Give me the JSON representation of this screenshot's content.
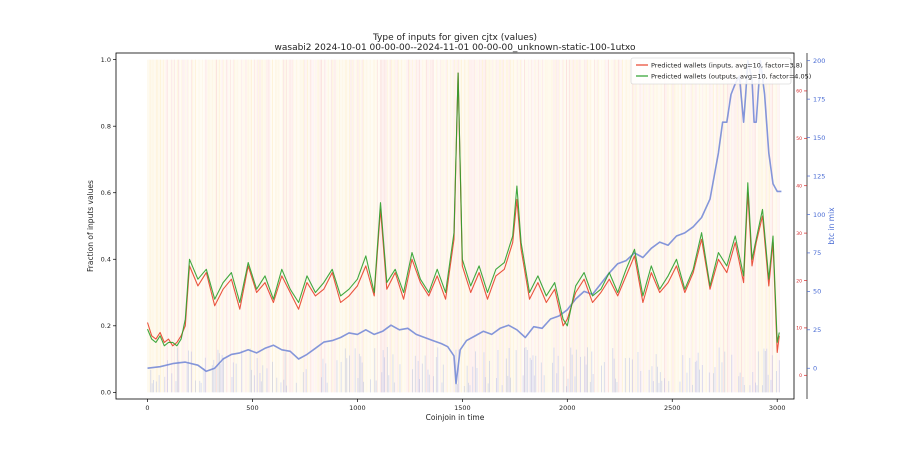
{
  "chart_data": {
    "type": "line",
    "title": "Type of inputs for given cjtx (values)",
    "subtitle": "wasabi2 2024-10-01 00-00-00--2024-11-01 00-00-00_unknown-static-100-1utxo",
    "xlabel": "Coinjoin in time",
    "ylabel": "Fraction of inputs values",
    "ylabel_right": "btc in mix",
    "xlim": [
      -150,
      3080
    ],
    "ylim": [
      -0.02,
      1.02
    ],
    "y2lim": [
      -20,
      205
    ],
    "y3lim": [
      -5,
      68
    ],
    "xticks": [
      "0",
      "500",
      "1000",
      "1500",
      "2000",
      "2500",
      "3000"
    ],
    "yticks": [
      "0.0",
      "0.2",
      "0.4",
      "0.6",
      "0.8",
      "1.0"
    ],
    "y2ticks": [
      "0",
      "25",
      "50",
      "75",
      "100",
      "125",
      "150",
      "175",
      "200"
    ],
    "y3ticks": [
      "0",
      "10",
      "20",
      "30",
      "40",
      "50",
      "60"
    ],
    "legend_position": "top-right",
    "series": [
      {
        "name": "Predicted wallets (inputs, avg=10, factor=3.8)",
        "color": "#e8422c",
        "x": [
          0,
          20,
          40,
          60,
          80,
          100,
          120,
          140,
          160,
          180,
          200,
          240,
          280,
          320,
          360,
          400,
          440,
          480,
          520,
          560,
          600,
          640,
          680,
          720,
          760,
          800,
          840,
          880,
          920,
          960,
          1000,
          1040,
          1080,
          1110,
          1140,
          1180,
          1220,
          1260,
          1300,
          1340,
          1380,
          1420,
          1460,
          1480,
          1500,
          1540,
          1580,
          1620,
          1660,
          1700,
          1740,
          1760,
          1780,
          1820,
          1860,
          1900,
          1940,
          1980,
          2000,
          2040,
          2080,
          2120,
          2160,
          2200,
          2240,
          2280,
          2320,
          2360,
          2400,
          2440,
          2480,
          2520,
          2560,
          2600,
          2640,
          2680,
          2720,
          2760,
          2800,
          2840,
          2860,
          2880,
          2900,
          2930,
          2960,
          2980,
          3000,
          3010
        ],
        "y": [
          0.21,
          0.17,
          0.16,
          0.18,
          0.15,
          0.16,
          0.14,
          0.15,
          0.17,
          0.2,
          0.38,
          0.32,
          0.36,
          0.26,
          0.31,
          0.34,
          0.25,
          0.38,
          0.3,
          0.33,
          0.27,
          0.35,
          0.3,
          0.25,
          0.33,
          0.29,
          0.31,
          0.36,
          0.27,
          0.29,
          0.32,
          0.38,
          0.29,
          0.55,
          0.31,
          0.36,
          0.28,
          0.4,
          0.33,
          0.29,
          0.35,
          0.28,
          0.46,
          0.96,
          0.38,
          0.3,
          0.36,
          0.28,
          0.35,
          0.37,
          0.45,
          0.58,
          0.43,
          0.28,
          0.33,
          0.27,
          0.31,
          0.2,
          0.22,
          0.3,
          0.34,
          0.27,
          0.3,
          0.34,
          0.29,
          0.35,
          0.41,
          0.27,
          0.36,
          0.3,
          0.33,
          0.38,
          0.3,
          0.36,
          0.46,
          0.31,
          0.4,
          0.36,
          0.45,
          0.33,
          0.6,
          0.38,
          0.45,
          0.53,
          0.32,
          0.45,
          0.12,
          0.17
        ]
      },
      {
        "name": "Predicted wallets (outputs, avg=10, factor=4.05)",
        "color": "#2ca02c",
        "x": [
          0,
          20,
          40,
          60,
          80,
          100,
          120,
          140,
          160,
          180,
          200,
          240,
          280,
          320,
          360,
          400,
          440,
          480,
          520,
          560,
          600,
          640,
          680,
          720,
          760,
          800,
          840,
          880,
          920,
          960,
          1000,
          1040,
          1080,
          1110,
          1140,
          1180,
          1220,
          1260,
          1300,
          1340,
          1380,
          1420,
          1460,
          1480,
          1500,
          1540,
          1580,
          1620,
          1660,
          1700,
          1740,
          1760,
          1780,
          1820,
          1860,
          1900,
          1940,
          1980,
          2000,
          2040,
          2080,
          2120,
          2160,
          2200,
          2240,
          2280,
          2320,
          2360,
          2400,
          2440,
          2480,
          2520,
          2560,
          2600,
          2640,
          2680,
          2720,
          2760,
          2800,
          2840,
          2860,
          2880,
          2900,
          2930,
          2960,
          2980,
          3000,
          3010
        ],
        "y": [
          0.19,
          0.16,
          0.15,
          0.17,
          0.14,
          0.15,
          0.15,
          0.14,
          0.16,
          0.22,
          0.4,
          0.34,
          0.37,
          0.28,
          0.33,
          0.36,
          0.27,
          0.39,
          0.31,
          0.35,
          0.28,
          0.37,
          0.31,
          0.27,
          0.35,
          0.3,
          0.33,
          0.37,
          0.29,
          0.31,
          0.34,
          0.41,
          0.3,
          0.57,
          0.33,
          0.37,
          0.3,
          0.42,
          0.34,
          0.3,
          0.37,
          0.3,
          0.48,
          0.96,
          0.4,
          0.32,
          0.38,
          0.3,
          0.37,
          0.39,
          0.47,
          0.62,
          0.45,
          0.3,
          0.35,
          0.29,
          0.33,
          0.22,
          0.2,
          0.32,
          0.36,
          0.29,
          0.31,
          0.36,
          0.3,
          0.37,
          0.43,
          0.29,
          0.38,
          0.31,
          0.35,
          0.4,
          0.31,
          0.37,
          0.48,
          0.32,
          0.42,
          0.38,
          0.47,
          0.35,
          0.63,
          0.4,
          0.46,
          0.55,
          0.34,
          0.47,
          0.15,
          0.18
        ]
      },
      {
        "name": "btc in mix",
        "color": "#6f85d6",
        "x": [
          0,
          60,
          120,
          180,
          240,
          280,
          320,
          360,
          400,
          440,
          480,
          520,
          560,
          600,
          640,
          680,
          720,
          760,
          800,
          840,
          880,
          920,
          960,
          1000,
          1040,
          1080,
          1120,
          1160,
          1200,
          1240,
          1280,
          1320,
          1360,
          1400,
          1430,
          1460,
          1470,
          1490,
          1520,
          1560,
          1600,
          1640,
          1680,
          1720,
          1760,
          1800,
          1840,
          1880,
          1920,
          1960,
          2000,
          2040,
          2080,
          2120,
          2160,
          2200,
          2240,
          2280,
          2320,
          2360,
          2400,
          2440,
          2480,
          2520,
          2560,
          2600,
          2640,
          2680,
          2720,
          2740,
          2760,
          2780,
          2800,
          2820,
          2840,
          2850,
          2860,
          2880,
          2890,
          2900,
          2920,
          2940,
          2960,
          2980,
          3000,
          3020
        ],
        "y": [
          0,
          1,
          3,
          4,
          2,
          -2,
          0,
          6,
          9,
          10,
          12,
          10,
          13,
          15,
          12,
          11,
          6,
          9,
          13,
          17,
          18,
          20,
          23,
          22,
          25,
          22,
          24,
          28,
          25,
          26,
          22,
          20,
          18,
          16,
          14,
          8,
          -10,
          12,
          18,
          21,
          24,
          22,
          26,
          28,
          25,
          20,
          27,
          26,
          32,
          34,
          38,
          45,
          50,
          48,
          55,
          62,
          68,
          70,
          75,
          72,
          78,
          82,
          80,
          86,
          88,
          92,
          98,
          110,
          140,
          160,
          160,
          178,
          185,
          190,
          160,
          178,
          200,
          188,
          160,
          160,
          200,
          178,
          140,
          120,
          115,
          115
        ]
      }
    ]
  }
}
